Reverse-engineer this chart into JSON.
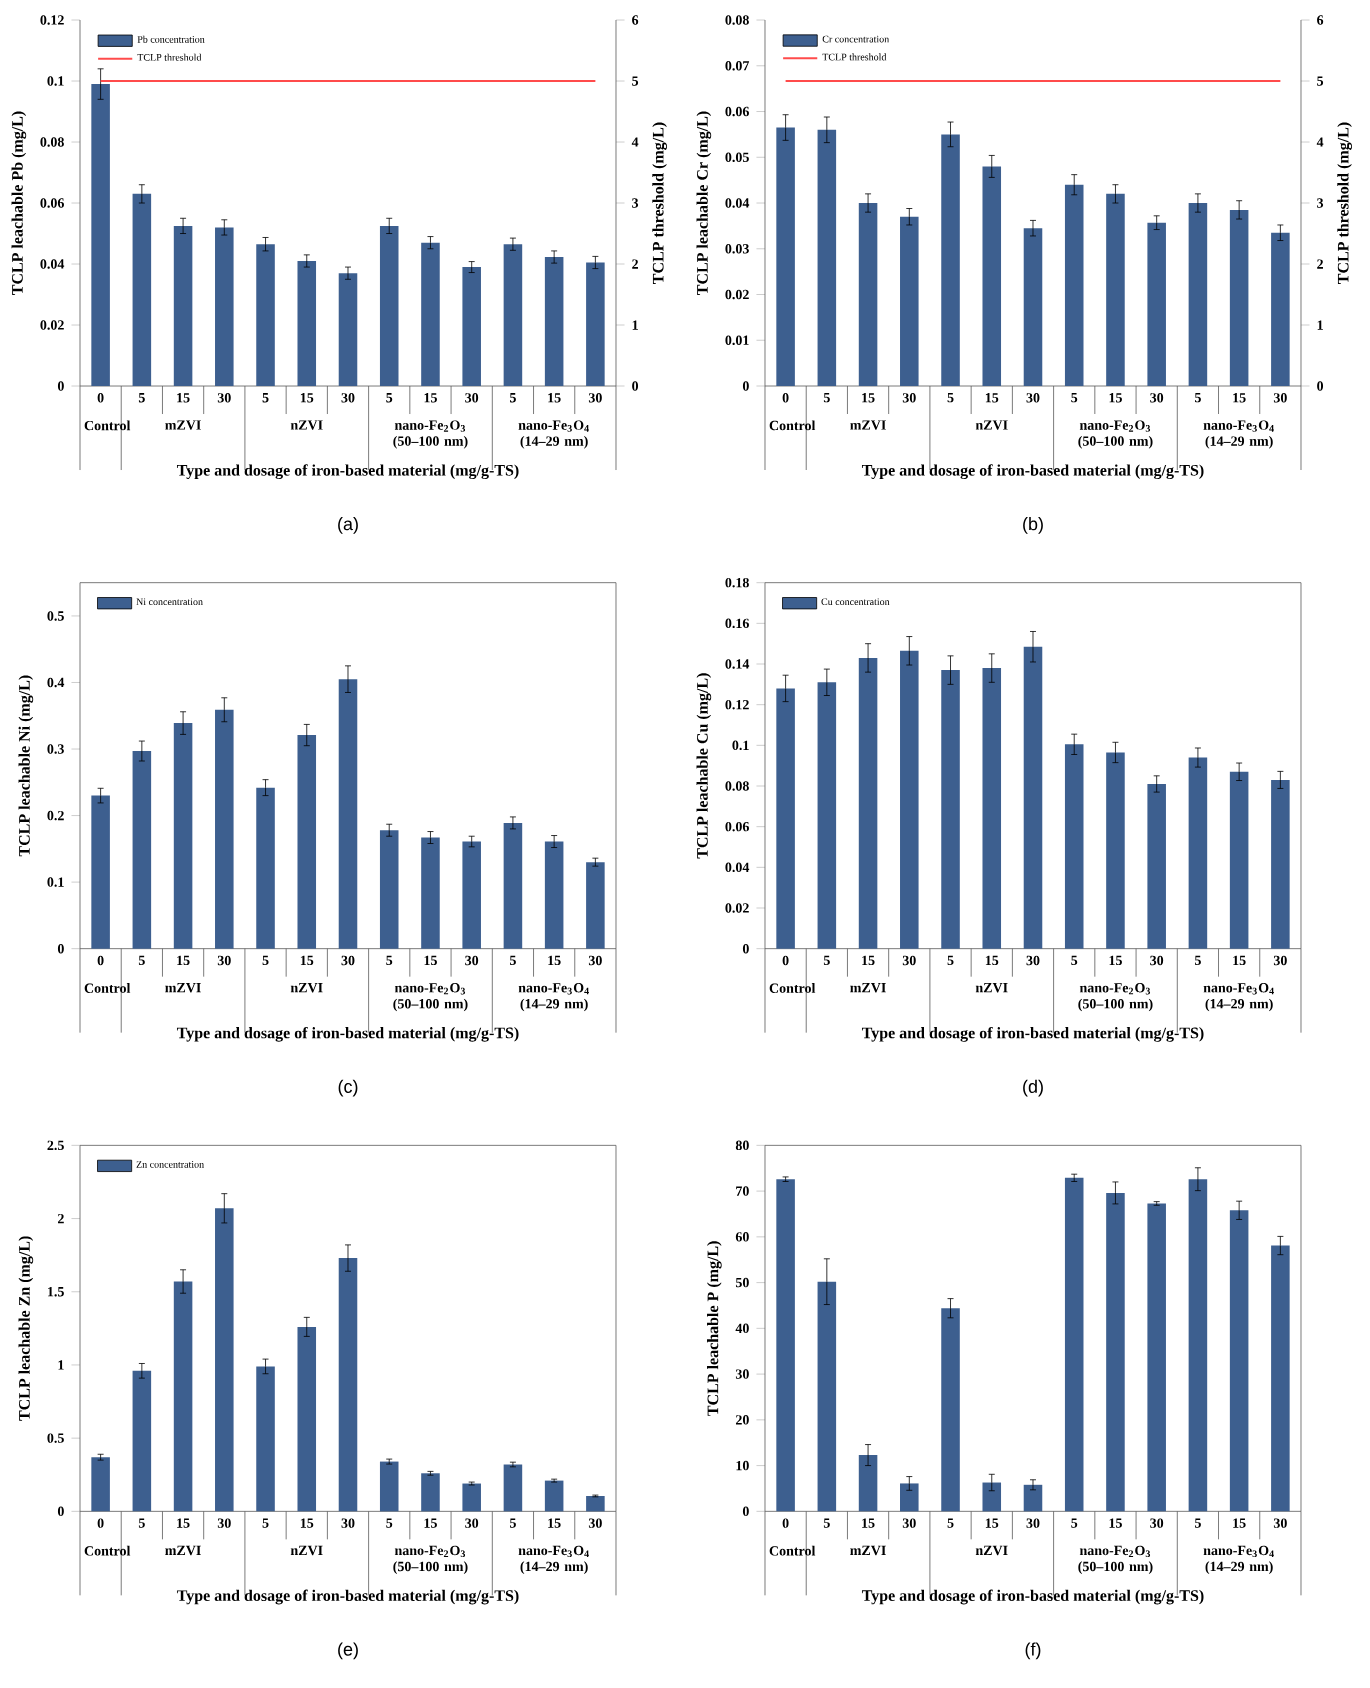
{
  "chart_data": [
    {
      "type": "bar",
      "title": "(a)",
      "xlabel": "Type and dosage of iron-based material (mg/g-TS)",
      "ylabel": "TCLP leachable Pb (mg/L)",
      "y2label": "TCLP threshold (mg/L)",
      "categories": [
        "0",
        "5",
        "15",
        "30",
        "5",
        "15",
        "30",
        "5",
        "15",
        "30",
        "5",
        "15",
        "30"
      ],
      "series": [
        {
          "name": "Pb concentration",
          "color": "#3d5f8f",
          "values": [
            0.099,
            0.063,
            0.0525,
            0.052,
            0.0465,
            0.041,
            0.037,
            0.0525,
            0.047,
            0.039,
            0.0465,
            0.0423,
            0.0405
          ],
          "errors": [
            0.005,
            0.003,
            0.0025,
            0.0025,
            0.0022,
            0.002,
            0.002,
            0.0025,
            0.002,
            0.0018,
            0.002,
            0.002,
            0.002
          ]
        }
      ],
      "ylim": [
        0,
        0.12
      ],
      "yticks": [
        0,
        0.02,
        0.04,
        0.06,
        0.08,
        0.1,
        0.12
      ],
      "y2lim": [
        0,
        6
      ],
      "y2ticks": [
        0,
        1,
        2,
        3,
        4,
        5,
        6
      ],
      "ref_lines": [
        {
          "axis": "y2",
          "value": 5,
          "label": "TCLP threshold",
          "color": "#ff4b4b"
        }
      ],
      "annotations": [
        "Control",
        "mZVI",
        "nZVI",
        "nano-Fe$_{2}$O$_{3}$ (50–100 nm)",
        "nano-Fe$_{3}$O$_{4}$ (14–29 nm)"
      ],
      "legend": "top left"
    },
    {
      "type": "bar",
      "title": "(b)",
      "xlabel": "Type and dosage of iron-based material (mg/g-TS)",
      "ylabel": "TCLP leachable Cr (mg/L)",
      "y2label": "TCLP threshold (mg/L)",
      "categories": [
        "0",
        "5",
        "15",
        "30",
        "5",
        "15",
        "30",
        "5",
        "15",
        "30",
        "5",
        "15",
        "30"
      ],
      "series": [
        {
          "name": "Cr concentration",
          "color": "#3d5f8f",
          "values": [
            0.0565,
            0.056,
            0.04,
            0.037,
            0.055,
            0.048,
            0.0345,
            0.044,
            0.042,
            0.0357,
            0.04,
            0.0385,
            0.0335
          ],
          "errors": [
            0.0028,
            0.0028,
            0.002,
            0.0018,
            0.0027,
            0.0024,
            0.0017,
            0.0022,
            0.002,
            0.0015,
            0.002,
            0.002,
            0.0017
          ]
        }
      ],
      "ylim": [
        0,
        0.08
      ],
      "yticks": [
        0,
        0.01,
        0.02,
        0.03,
        0.04,
        0.05,
        0.06,
        0.07,
        0.08
      ],
      "y2lim": [
        0,
        6
      ],
      "y2ticks": [
        0,
        1,
        2,
        3,
        4,
        5,
        6
      ],
      "ref_lines": [
        {
          "axis": "y2",
          "value": 5,
          "label": "TCLP threshold",
          "color": "#ff4b4b"
        }
      ],
      "annotations": [
        "Control",
        "mZVI",
        "nZVI",
        "nano-Fe$_{2}$O$_{3}$ (50–100 nm)",
        "nano-Fe$_{3}$O$_{4}$ (14–29 nm)"
      ],
      "legend": "top left"
    },
    {
      "type": "bar",
      "title": "(c)",
      "xlabel": "Type and dosage of iron-based material (mg/g-TS)",
      "ylabel": "TCLP leachable Ni (mg/L)",
      "categories": [
        "0",
        "5",
        "15",
        "30",
        "5",
        "15",
        "30",
        "5",
        "15",
        "30",
        "5",
        "15",
        "30"
      ],
      "series": [
        {
          "name": "Ni concentration",
          "color": "#3d5f8f",
          "values": [
            0.23,
            0.297,
            0.339,
            0.359,
            0.242,
            0.321,
            0.405,
            0.178,
            0.167,
            0.161,
            0.189,
            0.161,
            0.13
          ],
          "errors": [
            0.011,
            0.015,
            0.017,
            0.018,
            0.012,
            0.016,
            0.02,
            0.009,
            0.009,
            0.008,
            0.009,
            0.009,
            0.006
          ]
        }
      ],
      "ylim": [
        0,
        0.55
      ],
      "yticks": [
        0,
        0.1,
        0.2,
        0.3,
        0.4,
        0.5
      ],
      "annotations": [
        "Control",
        "mZVI",
        "nZVI",
        "nano-Fe$_{2}$O$_{3}$ (50–100 nm)",
        "nano-Fe$_{3}$O$_{4}$ (14–29 nm)"
      ],
      "legend": "top left"
    },
    {
      "type": "bar",
      "title": "(d)",
      "xlabel": "Type and dosage of iron-based material (mg/g-TS)",
      "ylabel": "TCLP leachable Cu (mg/L)",
      "categories": [
        "0",
        "5",
        "15",
        "30",
        "5",
        "15",
        "30",
        "5",
        "15",
        "30",
        "5",
        "15",
        "30"
      ],
      "series": [
        {
          "name": "Cu concentration",
          "color": "#3d5f8f",
          "values": [
            0.128,
            0.131,
            0.143,
            0.1465,
            0.137,
            0.138,
            0.1485,
            0.1005,
            0.0965,
            0.081,
            0.094,
            0.087,
            0.083
          ],
          "errors": [
            0.0065,
            0.0065,
            0.007,
            0.007,
            0.007,
            0.007,
            0.0075,
            0.005,
            0.005,
            0.004,
            0.0047,
            0.0043,
            0.0042
          ]
        }
      ],
      "ylim": [
        0,
        0.18
      ],
      "yticks": [
        0,
        0.02,
        0.04,
        0.06,
        0.08,
        0.1,
        0.12,
        0.14,
        0.16,
        0.18
      ],
      "annotations": [
        "Control",
        "mZVI",
        "nZVI",
        "nano-Fe$_{2}$O$_{3}$ (50–100 nm)",
        "nano-Fe$_{3}$O$_{4}$ (14–29 nm)"
      ],
      "legend": "top left"
    },
    {
      "type": "bar",
      "title": "(e)",
      "xlabel": "Type and dosage of iron-based material (mg/g-TS)",
      "ylabel": "TCLP leachable Zn (mg/L)",
      "categories": [
        "0",
        "5",
        "15",
        "30",
        "5",
        "15",
        "30",
        "5",
        "15",
        "30",
        "5",
        "15",
        "30"
      ],
      "series": [
        {
          "name": "Zn concentration",
          "color": "#3d5f8f",
          "values": [
            0.37,
            0.96,
            1.57,
            2.07,
            0.99,
            1.26,
            1.73,
            0.34,
            0.26,
            0.19,
            0.32,
            0.21,
            0.105
          ],
          "errors": [
            0.02,
            0.05,
            0.08,
            0.1,
            0.05,
            0.065,
            0.09,
            0.017,
            0.013,
            0.01,
            0.016,
            0.01,
            0.006
          ]
        }
      ],
      "ylim": [
        0,
        2.5
      ],
      "yticks": [
        0,
        0.5,
        1,
        1.5,
        2,
        2.5
      ],
      "annotations": [
        "Control",
        "mZVI",
        "nZVI",
        "nano-Fe$_{2}$O$_{3}$ (50–100 nm)",
        "nano-Fe$_{3}$O$_{4}$ (14–29 nm)"
      ],
      "legend": "top left"
    },
    {
      "type": "bar",
      "title": "(f)",
      "xlabel": "Type and dosage of iron-based material (mg/g-TS)",
      "ylabel": "TCLP leachable P (mg/L)",
      "categories": [
        "0",
        "5",
        "15",
        "30",
        "5",
        "15",
        "30",
        "5",
        "15",
        "30",
        "5",
        "15",
        "30"
      ],
      "series": [
        {
          "color": "#3d5f8f",
          "values": [
            72.6,
            50.2,
            12.3,
            6.1,
            44.4,
            6.3,
            5.8,
            72.9,
            69.6,
            67.3,
            72.6,
            65.8,
            58.1
          ],
          "errors": [
            0.5,
            5,
            2.3,
            1.5,
            2.1,
            1.8,
            1.1,
            0.8,
            2.4,
            0.4,
            2.5,
            2,
            2
          ]
        }
      ],
      "ylim": [
        0,
        80
      ],
      "yticks": [
        0,
        10,
        20,
        30,
        40,
        50,
        60,
        70,
        80
      ],
      "annotations": [
        "Control",
        "mZVI",
        "nZVI",
        "nano-Fe$_{2}$O$_{3}$ (50–100 nm)",
        "nano-Fe$_{3}$O$_{4}$ (14–29 nm)"
      ]
    }
  ]
}
